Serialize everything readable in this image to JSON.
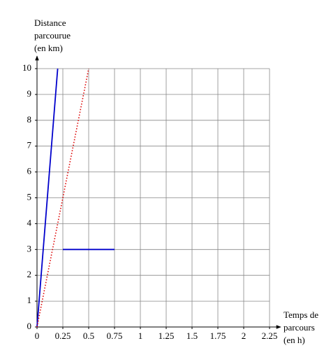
{
  "chart_data": {
    "type": "line",
    "ylabel": [
      "Distance",
      "parcourue",
      "(en km)"
    ],
    "xlabel": [
      "Temps de",
      "parcours",
      "(en h)"
    ],
    "xlim": [
      0,
      2.25
    ],
    "ylim": [
      0,
      10
    ],
    "xticks": [
      0,
      0.25,
      0.5,
      0.75,
      1,
      1.25,
      1.5,
      1.75,
      2,
      2.25
    ],
    "yticks": [
      0,
      1,
      2,
      3,
      4,
      5,
      6,
      7,
      8,
      9,
      10
    ],
    "grid": true,
    "series": [
      {
        "color": "#0000cc",
        "linestyle": "solid",
        "x": [
          0,
          0.2
        ],
        "values": [
          0,
          10
        ]
      },
      {
        "color": "#dd0000",
        "linestyle": "dotted",
        "x": [
          0,
          0.5
        ],
        "values": [
          0,
          10
        ]
      },
      {
        "color": "#0000cc",
        "linestyle": "solid",
        "x": [
          0.25,
          0.75
        ],
        "values": [
          3,
          3
        ]
      }
    ]
  }
}
